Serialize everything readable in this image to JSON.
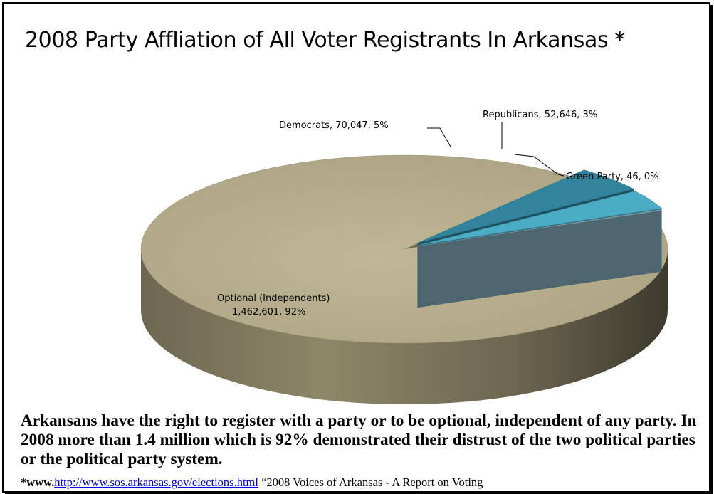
{
  "chart_data": {
    "type": "pie",
    "title": "2008 Party Affliation of All Voter Registrants  In Arkansas *",
    "slices": [
      {
        "name": "Optional (Independents)",
        "value": 1462601,
        "percent": 92,
        "label_line1": "Optional (Independents)",
        "label_line2": "1,462,601, 92%",
        "color": "#b7ae8c"
      },
      {
        "name": "Democrats",
        "value": 70047,
        "percent": 5,
        "label_line1": "Democrats, 70,047, 5%",
        "color": "#31849b"
      },
      {
        "name": "Republicans",
        "value": 52646,
        "percent": 3,
        "label_line1": "Republicans, 52,646, 3%",
        "color": "#4bacc6"
      },
      {
        "name": "Green Party",
        "value": 46,
        "percent": 0,
        "label_line1": "Green Party, 46, 0%",
        "color": "#7ba3b3"
      }
    ],
    "style": "3d-exploded",
    "legend": "none"
  },
  "caption": "Arkansans have the right to register with a party or to be optional, independent of  any party.  In 2008  more than 1.4 million which is 92% demonstrated their distrust of the two political parties or the political party system.",
  "source": {
    "prefix": "*www.",
    "link": "http://www.sos.arkansas.gov/elections.html",
    "suffix": "  “2008 Voices of Arkansas  - A Report on Voting"
  }
}
